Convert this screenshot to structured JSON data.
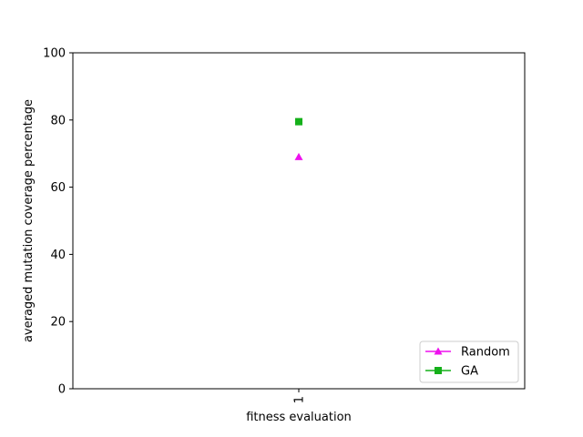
{
  "chart_data": {
    "type": "scatter",
    "title": "",
    "xlabel": "fitness evaluation",
    "ylabel": "averaged mutation coverage percentage",
    "x_categories": [
      "1"
    ],
    "x_tick_rotation": "vertical",
    "ylim": [
      0,
      100
    ],
    "y_ticks": [
      0,
      20,
      40,
      60,
      80,
      100
    ],
    "grid": false,
    "legend_position": "lower-right",
    "series": [
      {
        "name": "Random",
        "marker": "triangle",
        "color": "#ee11ee",
        "x": [
          "1"
        ],
        "values": [
          69
        ]
      },
      {
        "name": "GA",
        "marker": "square",
        "color": "#15b01a",
        "x": [
          "1"
        ],
        "values": [
          79.5
        ]
      }
    ]
  }
}
